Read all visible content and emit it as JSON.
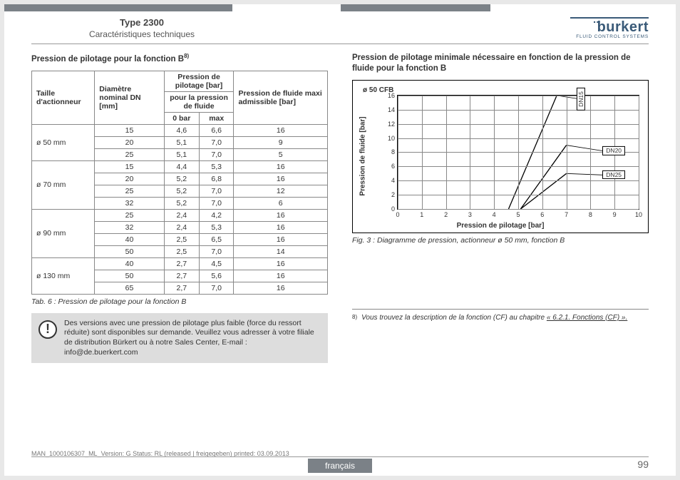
{
  "header": {
    "type_label": "Type 2300",
    "subtitle": "Caractéristiques techniques",
    "logo_main": "burkert",
    "logo_sub": "FLUID CONTROL SYSTEMS"
  },
  "left": {
    "title_prefix": "Pression de pilotage pour la fonction B",
    "title_sup": "8)",
    "table": {
      "headers": {
        "size": "Taille d'actionneur",
        "dn": "Diamètre nominal DN [mm]",
        "pilot": "Pression de pilotage [bar]",
        "pilot_sub": "pour la pression de fluide",
        "zero": "0 bar",
        "max": "max",
        "fluid": "Pression de fluide maxi admissible [bar]"
      },
      "groups": [
        {
          "size": "ø 50 mm",
          "rows": [
            {
              "dn": "15",
              "zero": "4,6",
              "max": "6,6",
              "fluid": "16"
            },
            {
              "dn": "20",
              "zero": "5,1",
              "max": "7,0",
              "fluid": "9"
            },
            {
              "dn": "25",
              "zero": "5,1",
              "max": "7,0",
              "fluid": "5"
            }
          ]
        },
        {
          "size": "ø 70 mm",
          "rows": [
            {
              "dn": "15",
              "zero": "4,4",
              "max": "5,3",
              "fluid": "16"
            },
            {
              "dn": "20",
              "zero": "5,2",
              "max": "6,8",
              "fluid": "16"
            },
            {
              "dn": "25",
              "zero": "5,2",
              "max": "7,0",
              "fluid": "12"
            },
            {
              "dn": "32",
              "zero": "5,2",
              "max": "7,0",
              "fluid": "6"
            }
          ]
        },
        {
          "size": "ø 90 mm",
          "rows": [
            {
              "dn": "25",
              "zero": "2,4",
              "max": "4,2",
              "fluid": "16"
            },
            {
              "dn": "32",
              "zero": "2,4",
              "max": "5,3",
              "fluid": "16"
            },
            {
              "dn": "40",
              "zero": "2,5",
              "max": "6,5",
              "fluid": "16"
            },
            {
              "dn": "50",
              "zero": "2,5",
              "max": "7,0",
              "fluid": "14"
            }
          ]
        },
        {
          "size": "ø 130 mm",
          "rows": [
            {
              "dn": "40",
              "zero": "2,7",
              "max": "4,5",
              "fluid": "16"
            },
            {
              "dn": "50",
              "zero": "2,7",
              "max": "5,6",
              "fluid": "16"
            },
            {
              "dn": "65",
              "zero": "2,7",
              "max": "7,0",
              "fluid": "16"
            }
          ]
        }
      ]
    },
    "caption": "Tab. 6 :   Pression de pilotage pour la fonction B",
    "note": "Des versions avec une pression de pilotage plus faible (force du ressort réduite) sont disponibles sur demande. Veuillez vous adresser à votre filiale de distribution Bürkert ou à notre Sales Center, E-mail : info@de.buerkert.com"
  },
  "right": {
    "title": "Pression de pilotage minimale nécessaire en fonction de la pression de fluide pour la fonction B",
    "chart": {
      "box_label": "ø 50 CFB",
      "xlabel": "Pression de pilotage [bar]",
      "ylabel": "Pression de fluide [bar]",
      "xlim": [
        0,
        10
      ],
      "ylim": [
        0,
        16
      ],
      "xticks": [
        0,
        1,
        2,
        3,
        4,
        5,
        6,
        7,
        8,
        9,
        10
      ],
      "yticks": [
        0,
        2,
        4,
        6,
        8,
        10,
        12,
        14,
        16
      ],
      "grid_color": "#888",
      "line_color": "#000",
      "background": "#ffffff",
      "series": [
        {
          "name": "DN15",
          "points": [
            [
              4.6,
              0
            ],
            [
              6.6,
              16
            ]
          ],
          "label_pos": {
            "x": 7.6,
            "y": 15.5,
            "rotate": -90
          }
        },
        {
          "name": "DN20",
          "points": [
            [
              5.1,
              0
            ],
            [
              7.0,
              9
            ]
          ],
          "label_pos": {
            "x": 8.5,
            "y": 8.2
          }
        },
        {
          "name": "DN25",
          "points": [
            [
              5.1,
              0
            ],
            [
              7.0,
              5
            ]
          ],
          "label_pos": {
            "x": 8.5,
            "y": 4.8
          }
        }
      ]
    },
    "caption": "Fig. 3 :   Diagramme de pression, actionneur ø 50 mm, fonction B",
    "footnote_num": "8)",
    "footnote_text": "Vous trouvez la description de la fonction (CF) au chapitre ",
    "footnote_link": "« 6.2.1. Fonctions (CF) »."
  },
  "footer": {
    "print_line": "MAN_1000106307_ML_Version: G Status: RL (released | freigegeben)  printed: 03.09.2013",
    "lang": "français",
    "page": "99"
  }
}
